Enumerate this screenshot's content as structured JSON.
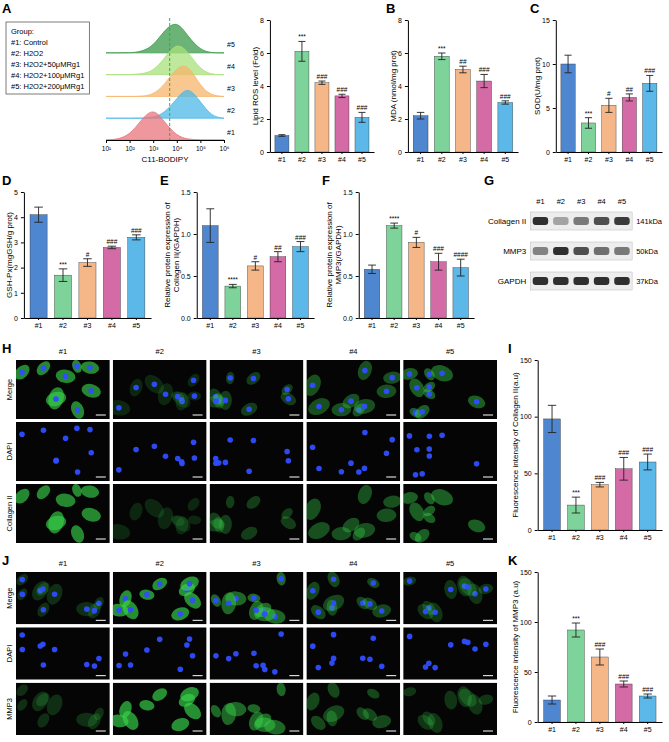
{
  "group_legend": {
    "title": "Group:",
    "items": [
      "#1: Control",
      "#2: H2O2",
      "#3: H2O2+50μMRg1",
      "#4: H2O2+100μMRg1",
      "#5: H2O2+200μMRg1"
    ]
  },
  "chart_data": [
    {
      "panel": "A",
      "type": "area",
      "x_label": "C11-BODIPY",
      "log": "x",
      "tick_labels": "x",
      "x": [
        10,
        30,
        100,
        300,
        1000,
        3000,
        10000,
        30000,
        100000,
        300000,
        1000000
      ],
      "xlim": [
        10,
        1000000
      ],
      "xticks": [
        {
          "value": 10,
          "label": "10¹"
        },
        {
          "value": 100,
          "label": "10²"
        },
        {
          "value": 1000,
          "label": "10³"
        },
        {
          "value": 10000,
          "label": "10⁴"
        },
        {
          "value": 100000,
          "label": "10⁵"
        },
        {
          "value": 1000000,
          "label": "10⁶"
        }
      ],
      "threshold": 5000,
      "series": [
        {
          "name": "#1",
          "color": "#e8747c",
          "values": [
            0,
            0.02,
            0.15,
            0.6,
            1.0,
            0.55,
            0.12,
            0.02,
            0,
            0,
            0
          ]
        },
        {
          "name": "#2",
          "color": "#4cb8e6",
          "values": [
            0,
            0,
            0,
            0,
            0.02,
            0.15,
            0.6,
            1.0,
            0.5,
            0.05,
            0
          ]
        },
        {
          "name": "#3",
          "color": "#f5b56b",
          "values": [
            0,
            0,
            0,
            0,
            0.05,
            0.35,
            0.9,
            1.0,
            0.3,
            0.02,
            0
          ]
        },
        {
          "name": "#4",
          "color": "#a8e07a",
          "values": [
            0,
            0,
            0,
            0.02,
            0.1,
            0.5,
            1.0,
            0.7,
            0.15,
            0,
            0
          ]
        },
        {
          "name": "#5",
          "color": "#3a9a4a",
          "values": [
            0,
            0,
            0,
            0.03,
            0.2,
            0.7,
            1.0,
            0.5,
            0.08,
            0,
            0
          ]
        }
      ]
    },
    {
      "type": "bar",
      "y_label": "Lipid ROS level (Fold)",
      "categories": [
        "#1",
        "#2",
        "#3",
        "#4",
        "#5"
      ],
      "values": [
        1.0,
        6.1,
        4.2,
        3.4,
        2.1
      ],
      "errors": [
        0.05,
        0.6,
        0.1,
        0.1,
        0.3
      ],
      "annotations": [
        null,
        "***",
        "###",
        "###",
        "###"
      ],
      "colors": [
        "#4f86d0",
        "#7ed39a",
        "#f6b788",
        "#d46aa6",
        "#5cb8e8"
      ],
      "ylim": [
        0,
        8
      ],
      "yticks": [
        0,
        2,
        4,
        6,
        8
      ]
    },
    {
      "panel": "B",
      "type": "bar",
      "y_label": "MDA (nmol/mg prot)",
      "categories": [
        "#1",
        "#2",
        "#3",
        "#4",
        "#5"
      ],
      "values": [
        2.2,
        5.8,
        5.0,
        4.3,
        3.0
      ],
      "errors": [
        0.2,
        0.2,
        0.2,
        0.4,
        0.1
      ],
      "annotations": [
        null,
        "***",
        "##",
        "###",
        "###"
      ],
      "colors": [
        "#4f86d0",
        "#7ed39a",
        "#f6b788",
        "#d46aa6",
        "#5cb8e8"
      ],
      "ylim": [
        0,
        8
      ],
      "yticks": [
        0,
        2,
        4,
        6,
        8
      ]
    },
    {
      "panel": "C",
      "type": "bar",
      "y_label": "SOD(U/mg prot)",
      "categories": [
        "#1",
        "#2",
        "#3",
        "#4",
        "#5"
      ],
      "values": [
        10,
        3.3,
        5.3,
        6.2,
        7.8
      ],
      "errors": [
        1,
        0.6,
        0.8,
        0.4,
        0.9
      ],
      "annotations": [
        null,
        "***",
        "#",
        "##",
        "###"
      ],
      "colors": [
        "#4f86d0",
        "#7ed39a",
        "#f6b788",
        "#d46aa6",
        "#5cb8e8"
      ],
      "ylim": [
        0,
        15
      ],
      "yticks": [
        0,
        5,
        10,
        15
      ]
    },
    {
      "panel": "D",
      "type": "bar",
      "y_label": "GSH-Px(mgGSH/g prot)",
      "categories": [
        "#1",
        "#2",
        "#3",
        "#4",
        "#5"
      ],
      "values": [
        4.1,
        1.7,
        2.2,
        2.8,
        3.2
      ],
      "errors": [
        0.3,
        0.25,
        0.15,
        0.05,
        0.1
      ],
      "annotations": [
        null,
        "***",
        "#",
        "###",
        "###"
      ],
      "colors": [
        "#4f86d0",
        "#7ed39a",
        "#f6b788",
        "#d46aa6",
        "#5cb8e8"
      ],
      "ylim": [
        0,
        5
      ],
      "yticks": [
        0,
        1,
        2,
        3,
        4,
        5
      ]
    },
    {
      "panel": "E",
      "type": "bar",
      "y_label": "Relative protein expression of Collagen II(/GAPDH)",
      "categories": [
        "#1",
        "#2",
        "#3",
        "#4",
        "#5"
      ],
      "values": [
        1.1,
        0.38,
        0.62,
        0.73,
        0.85
      ],
      "errors": [
        0.2,
        0.02,
        0.05,
        0.06,
        0.06
      ],
      "annotations": [
        null,
        "****",
        "#",
        "##",
        "###"
      ],
      "colors": [
        "#4f86d0",
        "#7ed39a",
        "#f6b788",
        "#d46aa6",
        "#5cb8e8"
      ],
      "ylim": [
        0,
        1.5
      ],
      "yticks": [
        {
          "value": 0,
          "label": "0.0"
        },
        0.5,
        {
          "value": 1,
          "label": "1.0"
        },
        1.5
      ]
    },
    {
      "panel": "F",
      "type": "bar",
      "y_label": "Relative protein expression of MMP3(/GAPDH)",
      "categories": [
        "#1",
        "#2",
        "#3",
        "#4",
        "#5"
      ],
      "values": [
        0.58,
        1.1,
        0.9,
        0.67,
        0.6
      ],
      "errors": [
        0.05,
        0.03,
        0.06,
        0.1,
        0.1
      ],
      "annotations": [
        null,
        "****",
        "#",
        "###",
        "####"
      ],
      "colors": [
        "#4f86d0",
        "#7ed39a",
        "#f6b788",
        "#d46aa6",
        "#5cb8e8"
      ],
      "ylim": [
        0,
        1.5
      ],
      "yticks": [
        {
          "value": 0,
          "label": "0.0"
        },
        0.5,
        {
          "value": 1,
          "label": "1.0"
        },
        1.5
      ]
    },
    {
      "panel": "I",
      "type": "bar",
      "y_label": "Fluorescence intensity of Collagen II(a.u)",
      "categories": [
        "#1",
        "#2",
        "#3",
        "#4",
        "#5"
      ],
      "values": [
        98,
        22,
        40,
        54,
        60
      ],
      "errors": [
        12,
        7,
        2,
        10,
        7
      ],
      "annotations": [
        null,
        "***",
        "###",
        "###",
        "###"
      ],
      "colors": [
        "#4f86d0",
        "#7ed39a",
        "#f6b788",
        "#d46aa6",
        "#5cb8e8"
      ],
      "ylim": [
        0,
        150
      ],
      "yticks": [
        0,
        50,
        100,
        150
      ]
    },
    {
      "panel": "K",
      "type": "bar",
      "y_label": "Fluorescence intensity of MMP3 (a.u)",
      "categories": [
        "#1",
        "#2",
        "#3",
        "#4",
        "#5"
      ],
      "values": [
        22,
        92,
        65,
        38,
        26
      ],
      "errors": [
        4,
        7,
        8,
        3,
        2
      ],
      "annotations": [
        null,
        "***",
        "###",
        "###",
        "###"
      ],
      "colors": [
        "#4f86d0",
        "#7ed39a",
        "#f6b788",
        "#d46aa6",
        "#5cb8e8"
      ],
      "ylim": [
        0,
        150
      ],
      "yticks": [
        0,
        50,
        100,
        150
      ]
    }
  ],
  "blot": {
    "panel": "G",
    "columns": [
      "#1",
      "#2",
      "#3",
      "#4",
      "#5"
    ],
    "rows": [
      {
        "label": "Collagen II",
        "kda": "141kDa",
        "intensities": [
          0.9,
          0.35,
          0.55,
          0.75,
          0.85
        ]
      },
      {
        "label": "MMP3",
        "kda": "50kDa",
        "intensities": [
          0.5,
          0.9,
          0.75,
          0.6,
          0.55
        ]
      },
      {
        "label": "GAPDH",
        "kda": "37kDa",
        "intensities": [
          0.9,
          0.9,
          0.9,
          0.9,
          0.9
        ]
      }
    ]
  },
  "images": [
    {
      "panel": "H",
      "columns": [
        "#1",
        "#2",
        "#3",
        "#4",
        "#5"
      ],
      "rows": [
        "Merge",
        "DAPI",
        "Collagen II"
      ],
      "signal": [
        0.8,
        0.2,
        0.35,
        0.45,
        0.55
      ]
    },
    {
      "panel": "J",
      "columns": [
        "#1",
        "#2",
        "#3",
        "#4",
        "#5"
      ],
      "rows": [
        "Merge",
        "DAPI",
        "MMP3"
      ],
      "signal": [
        0.25,
        0.85,
        0.6,
        0.4,
        0.3
      ]
    }
  ]
}
